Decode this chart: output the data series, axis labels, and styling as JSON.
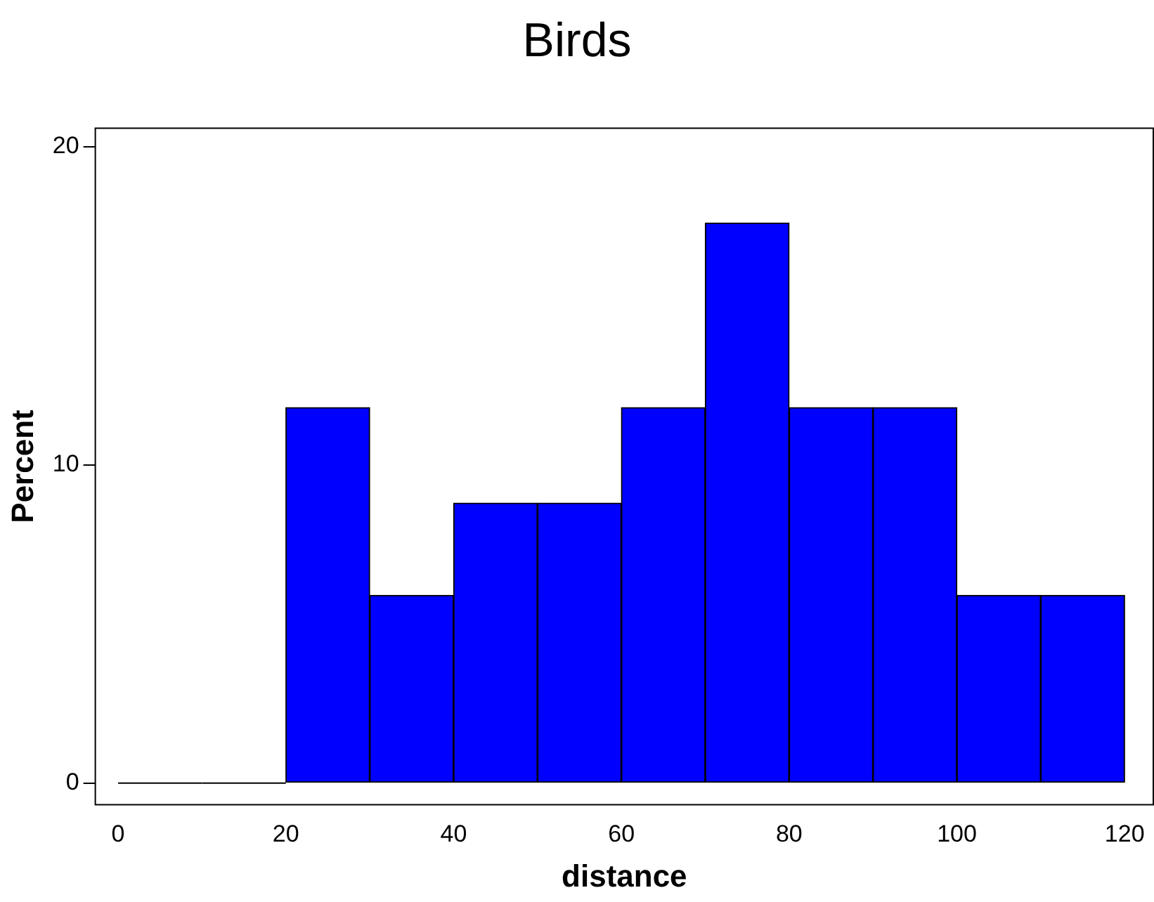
{
  "chart_data": {
    "type": "histogram",
    "title": "Birds",
    "xlabel": "distance",
    "ylabel": "Percent",
    "bins": [
      0,
      10,
      20,
      30,
      40,
      50,
      60,
      70,
      80,
      90,
      100,
      110,
      120
    ],
    "values": [
      0,
      0,
      11.8,
      5.9,
      8.8,
      8.8,
      11.8,
      17.6,
      11.8,
      11.8,
      5.9,
      5.9
    ],
    "color": "#0000ff",
    "xlim": [
      -2.8,
      123.5
    ],
    "xticks": [
      0,
      20,
      40,
      60,
      80,
      100,
      120
    ],
    "ylim": [
      -0.7,
      20.6
    ],
    "yticks": [
      0,
      10,
      20
    ],
    "grid": false,
    "legend": false
  }
}
